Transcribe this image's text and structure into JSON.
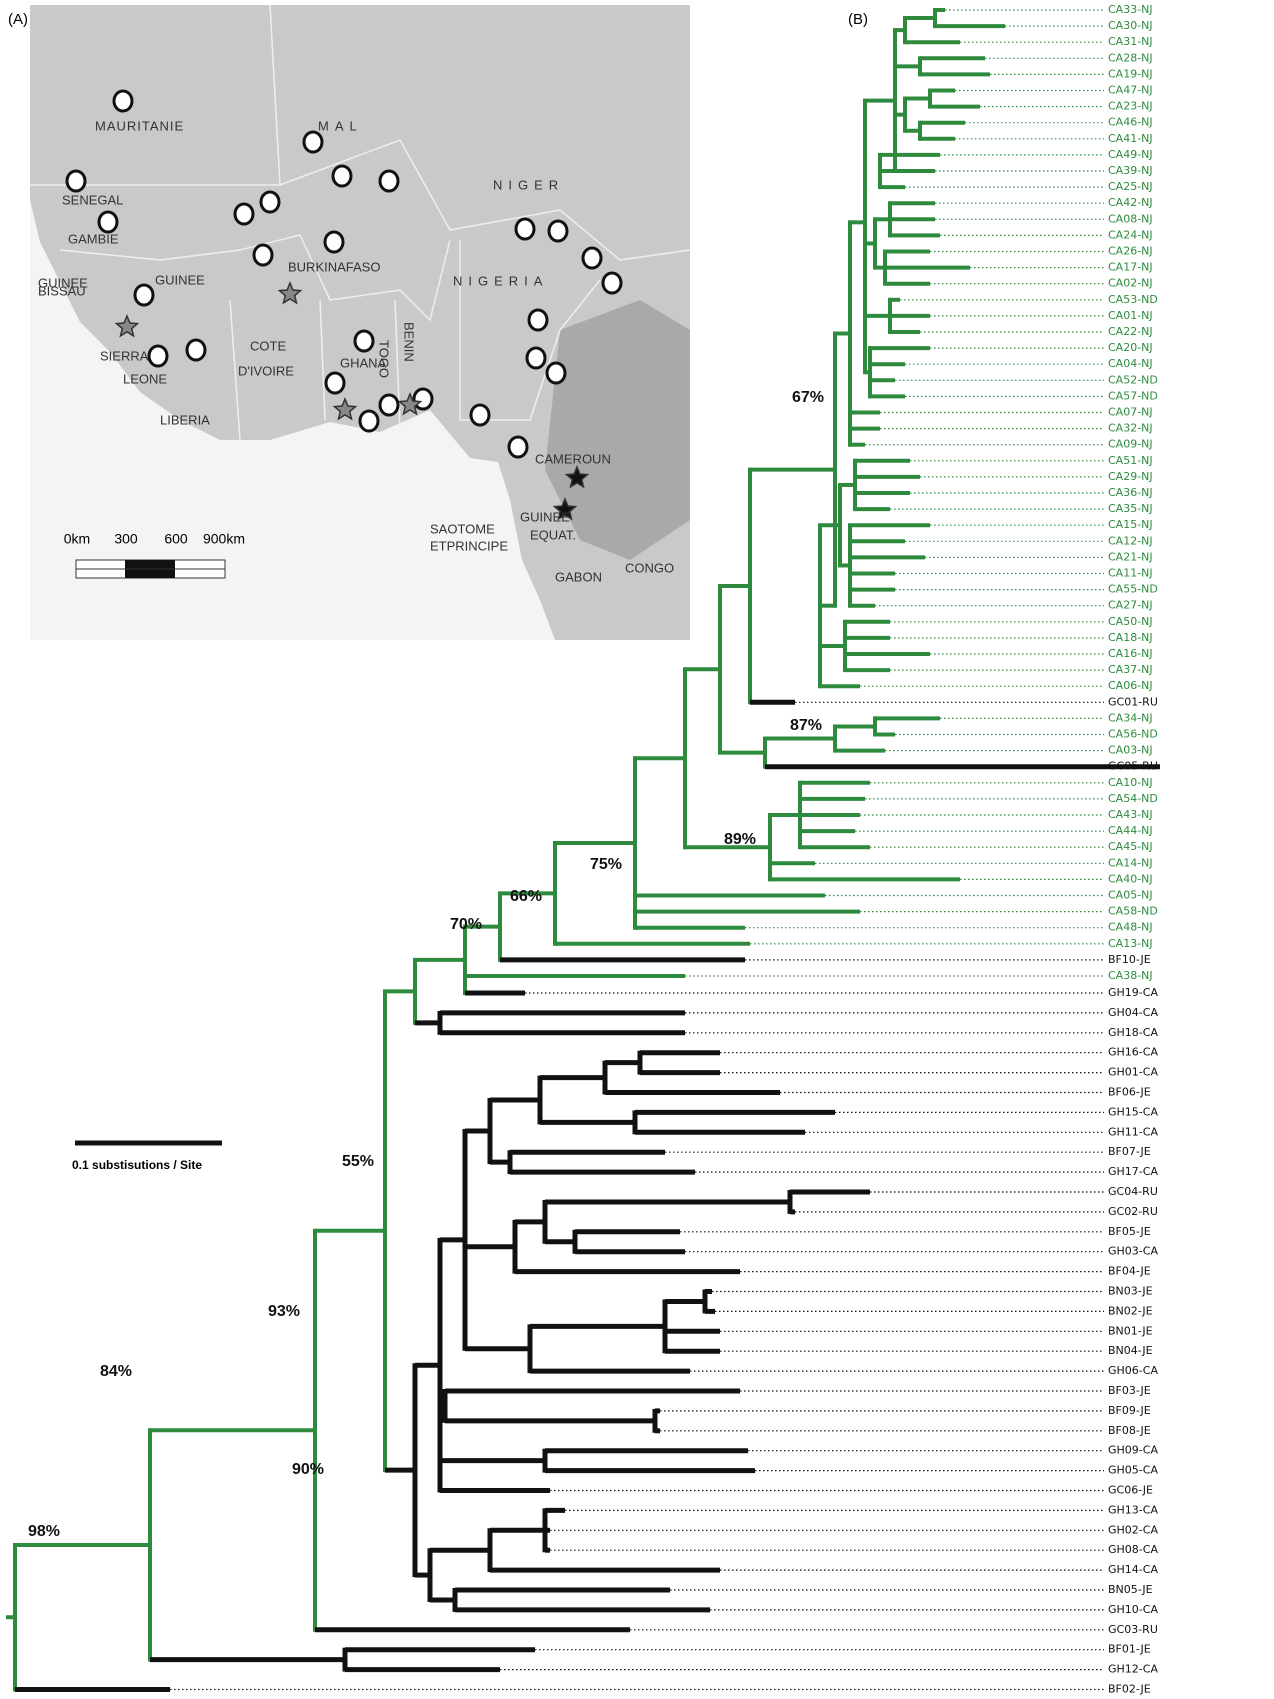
{
  "panels": {
    "a": "(A)",
    "b": "(B)"
  },
  "map": {
    "labels": [
      "MAURITANIE",
      "MAL",
      "SENEGAL",
      "GAMBIE",
      "GUINEE",
      "BISSAU",
      "GUINEE",
      "SIERRA",
      "LEONE",
      "LIBERIA",
      "COTE",
      "D'IVOIRE",
      "BURKINAFASO",
      "GHANA",
      "TOGO",
      "BENIN",
      "NIGER",
      "NIGERIA",
      "CAMEROUN",
      "SAOTOME",
      "ETPRINCIPE",
      "GUINEE",
      "EQUAT.",
      "GABON",
      "CONGO"
    ],
    "scale_labels": [
      "0km",
      "300",
      "600",
      "900km"
    ]
  },
  "tree": {
    "scale_label": "0.1 substisutions / Site",
    "support": [
      "98%",
      "84%",
      "93%",
      "90%",
      "55%",
      "70%",
      "66%",
      "75%",
      "89%",
      "87%",
      "67%"
    ],
    "leaves": [
      {
        "label": "CA33-NJ",
        "color": "#2e8b3e"
      },
      {
        "label": "CA30-NJ",
        "color": "#2e8b3e"
      },
      {
        "label": "CA31-NJ",
        "color": "#2e8b3e"
      },
      {
        "label": "CA28-NJ",
        "color": "#2e8b3e"
      },
      {
        "label": "CA19-NJ",
        "color": "#2e8b3e"
      },
      {
        "label": "CA47-NJ",
        "color": "#2e8b3e"
      },
      {
        "label": "CA23-NJ",
        "color": "#2e8b3e"
      },
      {
        "label": "CA46-NJ",
        "color": "#2e8b3e"
      },
      {
        "label": "CA41-NJ",
        "color": "#2e8b3e"
      },
      {
        "label": "CA49-NJ",
        "color": "#2e8b3e"
      },
      {
        "label": "CA39-NJ",
        "color": "#2e8b3e"
      },
      {
        "label": "CA25-NJ",
        "color": "#2e8b3e"
      },
      {
        "label": "CA42-NJ",
        "color": "#2e8b3e"
      },
      {
        "label": "CA08-NJ",
        "color": "#2e8b3e"
      },
      {
        "label": "CA24-NJ",
        "color": "#2e8b3e"
      },
      {
        "label": "CA26-NJ",
        "color": "#2e8b3e"
      },
      {
        "label": "CA17-NJ",
        "color": "#2e8b3e"
      },
      {
        "label": "CA02-NJ",
        "color": "#2e8b3e"
      },
      {
        "label": "CA53-ND",
        "color": "#2e8b3e"
      },
      {
        "label": "CA01-NJ",
        "color": "#2e8b3e"
      },
      {
        "label": "CA22-NJ",
        "color": "#2e8b3e"
      },
      {
        "label": "CA20-NJ",
        "color": "#2e8b3e"
      },
      {
        "label": "CA04-NJ",
        "color": "#2e8b3e"
      },
      {
        "label": "CA52-ND",
        "color": "#2e8b3e"
      },
      {
        "label": "CA57-ND",
        "color": "#2e8b3e"
      },
      {
        "label": "CA07-NJ",
        "color": "#2e8b3e"
      },
      {
        "label": "CA32-NJ",
        "color": "#2e8b3e"
      },
      {
        "label": "CA09-NJ",
        "color": "#2e8b3e"
      },
      {
        "label": "CA51-NJ",
        "color": "#2e8b3e"
      },
      {
        "label": "CA29-NJ",
        "color": "#2e8b3e"
      },
      {
        "label": "CA36-NJ",
        "color": "#2e8b3e"
      },
      {
        "label": "CA35-NJ",
        "color": "#2e8b3e"
      },
      {
        "label": "CA15-NJ",
        "color": "#2e8b3e"
      },
      {
        "label": "CA12-NJ",
        "color": "#2e8b3e"
      },
      {
        "label": "CA21-NJ",
        "color": "#2e8b3e"
      },
      {
        "label": "CA11-NJ",
        "color": "#2e8b3e"
      },
      {
        "label": "CA55-ND",
        "color": "#2e8b3e"
      },
      {
        "label": "CA27-NJ",
        "color": "#2e8b3e"
      },
      {
        "label": "CA50-NJ",
        "color": "#2e8b3e"
      },
      {
        "label": "CA18-NJ",
        "color": "#2e8b3e"
      },
      {
        "label": "CA16-NJ",
        "color": "#2e8b3e"
      },
      {
        "label": "CA37-NJ",
        "color": "#2e8b3e"
      },
      {
        "label": "CA06-NJ",
        "color": "#2e8b3e"
      },
      {
        "label": "GC01-RU",
        "color": "#111111"
      },
      {
        "label": "CA34-NJ",
        "color": "#2e8b3e"
      },
      {
        "label": "CA56-ND",
        "color": "#2e8b3e"
      },
      {
        "label": "CA03-NJ",
        "color": "#2e8b3e"
      },
      {
        "label": "GC05-RU",
        "color": "#111111"
      },
      {
        "label": "CA10-NJ",
        "color": "#2e8b3e"
      },
      {
        "label": "CA54-ND",
        "color": "#2e8b3e"
      },
      {
        "label": "CA43-NJ",
        "color": "#2e8b3e"
      },
      {
        "label": "CA44-NJ",
        "color": "#2e8b3e"
      },
      {
        "label": "CA45-NJ",
        "color": "#2e8b3e"
      },
      {
        "label": "CA14-NJ",
        "color": "#2e8b3e"
      },
      {
        "label": "CA40-NJ",
        "color": "#2e8b3e"
      },
      {
        "label": "CA05-NJ",
        "color": "#2e8b3e"
      },
      {
        "label": "CA58-ND",
        "color": "#2e8b3e"
      },
      {
        "label": "CA48-NJ",
        "color": "#2e8b3e"
      },
      {
        "label": "CA13-NJ",
        "color": "#2e8b3e"
      },
      {
        "label": "BF10-JE",
        "color": "#111111"
      },
      {
        "label": "CA38-NJ",
        "color": "#2e8b3e"
      },
      {
        "label": "GH19-CA",
        "color": "#111111"
      },
      {
        "label": "GH04-CA",
        "color": "#111111"
      },
      {
        "label": "GH18-CA",
        "color": "#111111"
      },
      {
        "label": "GH16-CA",
        "color": "#111111"
      },
      {
        "label": "GH01-CA",
        "color": "#111111"
      },
      {
        "label": "BF06-JE",
        "color": "#111111"
      },
      {
        "label": "GH15-CA",
        "color": "#111111"
      },
      {
        "label": "GH11-CA",
        "color": "#111111"
      },
      {
        "label": "BF07-JE",
        "color": "#111111"
      },
      {
        "label": "GH17-CA",
        "color": "#111111"
      },
      {
        "label": "GC04-RU",
        "color": "#111111"
      },
      {
        "label": "GC02-RU",
        "color": "#111111"
      },
      {
        "label": "BF05-JE",
        "color": "#111111"
      },
      {
        "label": "GH03-CA",
        "color": "#111111"
      },
      {
        "label": "BF04-JE",
        "color": "#111111"
      },
      {
        "label": "BN03-JE",
        "color": "#111111"
      },
      {
        "label": "BN02-JE",
        "color": "#111111"
      },
      {
        "label": "BN01-JE",
        "color": "#111111"
      },
      {
        "label": "BN04-JE",
        "color": "#111111"
      },
      {
        "label": "GH06-CA",
        "color": "#111111"
      },
      {
        "label": "BF03-JE",
        "color": "#111111"
      },
      {
        "label": "BF09-JE",
        "color": "#111111"
      },
      {
        "label": "BF08-JE",
        "color": "#111111"
      },
      {
        "label": "GH09-CA",
        "color": "#111111"
      },
      {
        "label": "GH05-CA",
        "color": "#111111"
      },
      {
        "label": "GC06-JE",
        "color": "#111111"
      },
      {
        "label": "GH13-CA",
        "color": "#111111"
      },
      {
        "label": "GH02-CA",
        "color": "#111111"
      },
      {
        "label": "GH08-CA",
        "color": "#111111"
      },
      {
        "label": "GH14-CA",
        "color": "#111111"
      },
      {
        "label": "BN05-JE",
        "color": "#111111"
      },
      {
        "label": "GH10-CA",
        "color": "#111111"
      },
      {
        "label": "GC03-RU",
        "color": "#111111"
      },
      {
        "label": "BF01-JE",
        "color": "#111111"
      },
      {
        "label": "GH12-CA",
        "color": "#111111"
      },
      {
        "label": "BF02-JE",
        "color": "#111111"
      }
    ]
  }
}
